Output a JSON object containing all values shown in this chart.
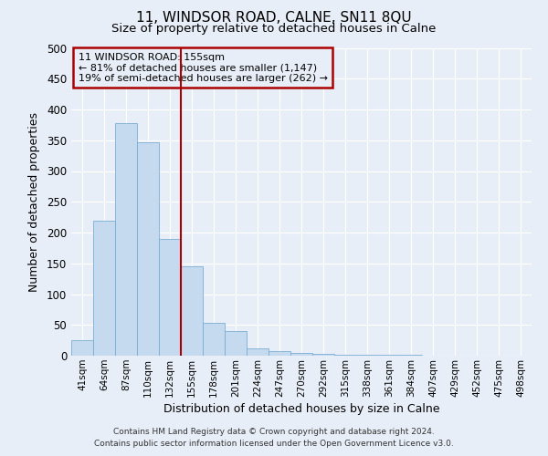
{
  "title": "11, WINDSOR ROAD, CALNE, SN11 8QU",
  "subtitle": "Size of property relative to detached houses in Calne",
  "xlabel": "Distribution of detached houses by size in Calne",
  "ylabel": "Number of detached properties",
  "bar_labels": [
    "41sqm",
    "64sqm",
    "87sqm",
    "110sqm",
    "132sqm",
    "155sqm",
    "178sqm",
    "201sqm",
    "224sqm",
    "247sqm",
    "270sqm",
    "292sqm",
    "315sqm",
    "338sqm",
    "361sqm",
    "384sqm",
    "407sqm",
    "429sqm",
    "452sqm",
    "475sqm",
    "498sqm"
  ],
  "bar_values": [
    25,
    220,
    378,
    347,
    190,
    145,
    53,
    40,
    12,
    7,
    5,
    3,
    2,
    1,
    1,
    1,
    0,
    0,
    0,
    0,
    0
  ],
  "bar_color": "#c5d9ef",
  "bar_edge_color": "#7aadd4",
  "vline_color": "#aa0000",
  "annotation_title": "11 WINDSOR ROAD: 155sqm",
  "annotation_line1": "← 81% of detached houses are smaller (1,147)",
  "annotation_line2": "19% of semi-detached houses are larger (262) →",
  "annotation_box_edgecolor": "#aa0000",
  "ylim": [
    0,
    500
  ],
  "yticks": [
    0,
    50,
    100,
    150,
    200,
    250,
    300,
    350,
    400,
    450,
    500
  ],
  "footer1": "Contains HM Land Registry data © Crown copyright and database right 2024.",
  "footer2": "Contains public sector information licensed under the Open Government Licence v3.0.",
  "bg_color": "#e8eef7",
  "grid_color": "#ffffff"
}
